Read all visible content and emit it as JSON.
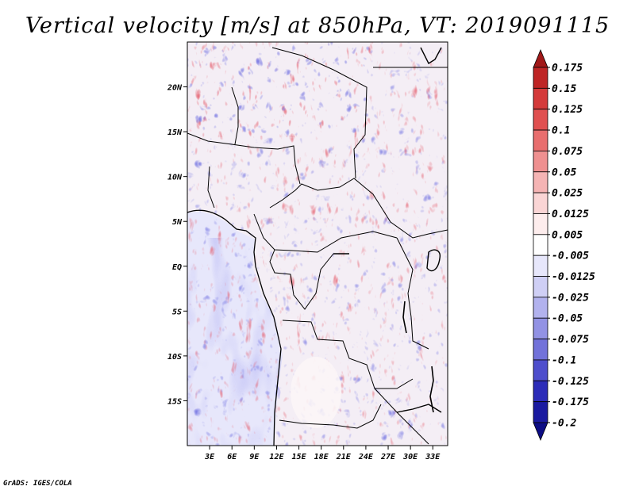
{
  "chart_data": {
    "type": "heatmap",
    "title": "Vertical velocity [m/s] at 850hPa, VT: 2019091115",
    "variable": "Vertical velocity",
    "units": "m/s",
    "level": "850hPa",
    "valid_time": "2019091115",
    "x_range": [
      0,
      35
    ],
    "y_range": [
      -20,
      25
    ],
    "x_ticks": [
      {
        "value": 3,
        "label": "3E"
      },
      {
        "value": 6,
        "label": "6E"
      },
      {
        "value": 9,
        "label": "9E"
      },
      {
        "value": 12,
        "label": "12E"
      },
      {
        "value": 15,
        "label": "15E"
      },
      {
        "value": 18,
        "label": "18E"
      },
      {
        "value": 21,
        "label": "21E"
      },
      {
        "value": 24,
        "label": "24E"
      },
      {
        "value": 27,
        "label": "27E"
      },
      {
        "value": 30,
        "label": "30E"
      },
      {
        "value": 33,
        "label": "33E"
      }
    ],
    "y_ticks": [
      {
        "value": 20,
        "label": "20N"
      },
      {
        "value": 15,
        "label": "15N"
      },
      {
        "value": 10,
        "label": "10N"
      },
      {
        "value": 5,
        "label": "5N"
      },
      {
        "value": 0,
        "label": "EQ"
      },
      {
        "value": -5,
        "label": "5S"
      },
      {
        "value": -10,
        "label": "10S"
      },
      {
        "value": -15,
        "label": "15S"
      }
    ],
    "colorbar": {
      "labels": [
        "0.175",
        "0.15",
        "0.125",
        "0.1",
        "0.075",
        "0.05",
        "0.025",
        "0.0125",
        "0.005",
        "-0.005",
        "-0.0125",
        "-0.025",
        "-0.05",
        "-0.075",
        "-0.1",
        "-0.125",
        "-0.175",
        "-0.2"
      ],
      "colors": [
        "#a01818",
        "#be2525",
        "#d43a3a",
        "#e05050",
        "#e86e6e",
        "#ef9090",
        "#f5b4b4",
        "#fad5d5",
        "#fdeded",
        "#ffffff",
        "#e7e7fb",
        "#cfcff5",
        "#b2b2ee",
        "#9292e4",
        "#7272da",
        "#4e4ecc",
        "#2c2cb8",
        "#1a1aa0",
        "#0c0c84"
      ]
    },
    "field_description": "Noisy small-scale vertical velocity field over central Africa and the SE Atlantic; strongest positive/negative couplets over the Sahel (north) and the Lake Malawi area (southeast); weak mostly-negative values over the ocean."
  },
  "credit": "GrADS: IGES/COLA"
}
